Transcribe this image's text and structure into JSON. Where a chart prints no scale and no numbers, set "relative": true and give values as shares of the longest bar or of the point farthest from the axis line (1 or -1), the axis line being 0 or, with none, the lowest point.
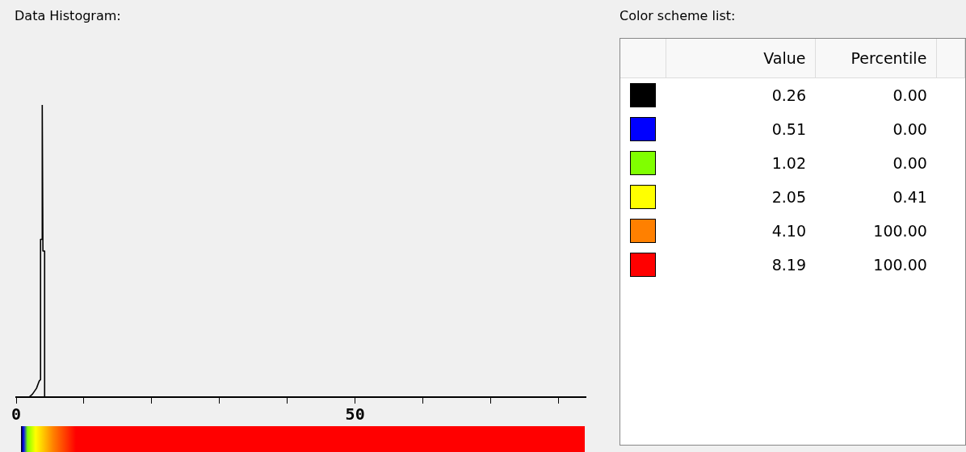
{
  "chart_data": [
    {
      "type": "line",
      "title": "Data Histogram:",
      "relative": true,
      "xlim": [
        0,
        84
      ],
      "xticks": [
        0,
        {
          "value": 10,
          "label": null
        },
        {
          "value": 20,
          "label": null
        },
        {
          "value": 30,
          "label": null
        },
        {
          "value": 40,
          "label": null
        },
        50,
        {
          "value": 60,
          "label": null
        },
        {
          "value": 70,
          "label": null
        },
        {
          "value": 80,
          "label": null
        }
      ],
      "series": [
        {
          "color": "#000000",
          "x": [
            1.9,
            2.4,
            3.0,
            3.4,
            3.6,
            3.6,
            3.85,
            3.85,
            3.95,
            4.2,
            4.2
          ],
          "values": [
            0,
            0.01,
            0.03,
            0.055,
            0.06,
            0.54,
            0.54,
            1,
            0.5,
            0.5,
            0
          ]
        }
      ]
    },
    {
      "type": "other",
      "title": "Color scheme list:",
      "colors": [
        "#000000",
        "#0000ff",
        "#80ff00",
        "#ffff00",
        "#ff8000",
        "#ff0000"
      ],
      "annotations": [
        "Value",
        "Percentile",
        "0.26",
        "0.00",
        "0.51",
        "0.00",
        "1.02",
        "0.00",
        "2.05",
        "0.41",
        "4.10",
        "100.00",
        "8.19",
        "100.00"
      ]
    }
  ]
}
